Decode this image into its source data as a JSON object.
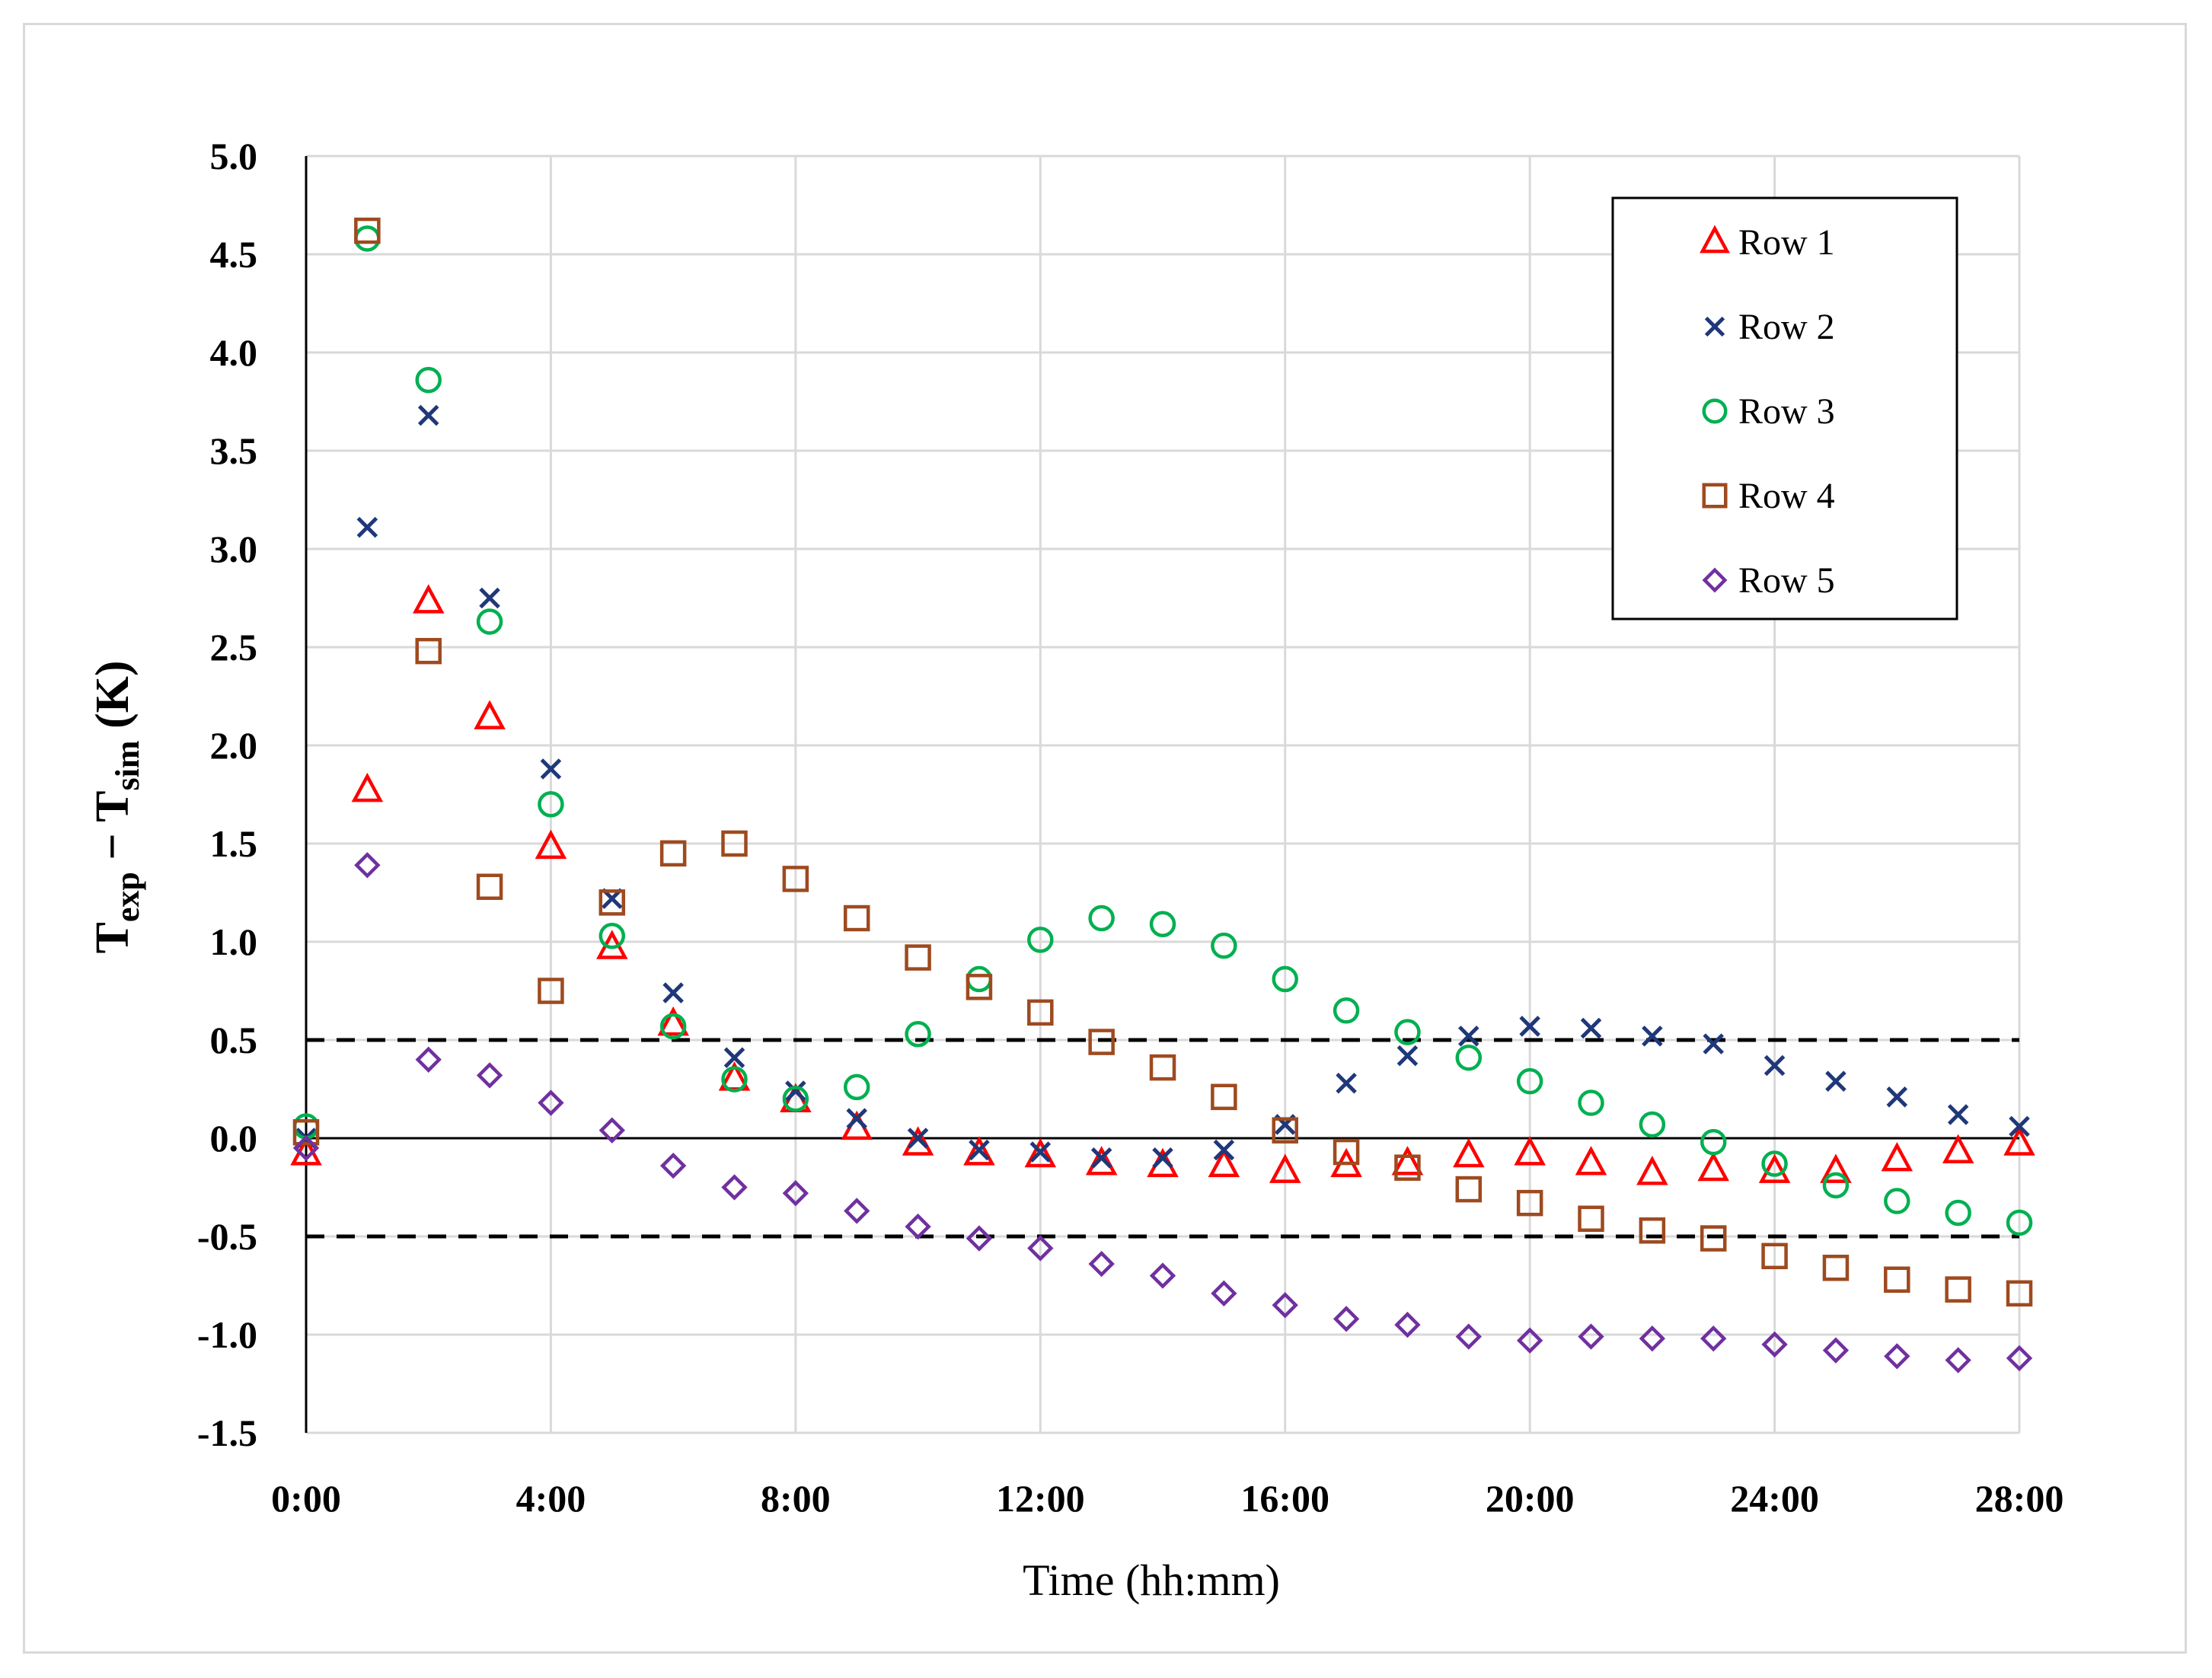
{
  "chart_data": {
    "type": "scatter",
    "title": "",
    "xlabel": "Time (hh:mm)",
    "ylabel": {
      "main": "T",
      "sub1": "exp",
      "minus": " − ",
      "main2": "T",
      "sub2": "sim",
      "unit": " (K)"
    },
    "xlim": [
      0,
      28
    ],
    "ylim": [
      -1.5,
      5.0
    ],
    "x_ticks": [
      0,
      4,
      8,
      12,
      16,
      20,
      24,
      28
    ],
    "x_tick_labels": [
      "0:00",
      "4:00",
      "8:00",
      "12:00",
      "16:00",
      "20:00",
      "24:00",
      "28:00"
    ],
    "y_ticks": [
      -1.5,
      -1.0,
      -0.5,
      0.0,
      0.5,
      1.0,
      1.5,
      2.0,
      2.5,
      3.0,
      3.5,
      4.0,
      4.5,
      5.0
    ],
    "y_tick_labels": [
      "-1.5",
      "-1.0",
      "-0.5",
      "0.0",
      "0.5",
      "1.0",
      "1.5",
      "2.0",
      "2.5",
      "3.0",
      "3.5",
      "4.0",
      "4.5",
      "5.0"
    ],
    "x_gridlines": [
      0,
      4,
      8,
      12,
      16,
      20,
      24,
      28
    ],
    "reference_lines": [
      0.5,
      -0.5
    ],
    "legend_position": "top-right",
    "x": [
      0,
      1,
      2,
      3,
      4,
      5,
      6,
      7,
      8,
      9,
      10,
      11,
      12,
      13,
      14,
      15,
      16,
      17,
      18,
      19,
      20,
      21,
      22,
      23,
      24,
      25,
      26,
      27,
      28
    ],
    "series": [
      {
        "name": "Row 1",
        "marker": "triangle",
        "color": "#ff0000",
        "values": [
          -0.08,
          1.77,
          2.73,
          2.14,
          1.48,
          0.97,
          0.58,
          0.3,
          0.19,
          0.05,
          -0.03,
          -0.08,
          -0.09,
          -0.13,
          -0.14,
          -0.14,
          -0.17,
          -0.14,
          -0.13,
          -0.09,
          -0.08,
          -0.13,
          -0.18,
          -0.16,
          -0.17,
          -0.17,
          -0.11,
          -0.07,
          -0.03
        ]
      },
      {
        "name": "Row 2",
        "marker": "x",
        "color": "#1f3879",
        "values": [
          0.0,
          3.11,
          3.68,
          2.75,
          1.88,
          1.22,
          0.74,
          0.41,
          0.24,
          0.1,
          0.0,
          -0.06,
          -0.07,
          -0.1,
          -0.1,
          -0.06,
          0.07,
          0.28,
          0.42,
          0.52,
          0.57,
          0.56,
          0.52,
          0.48,
          0.37,
          0.29,
          0.21,
          0.12,
          0.06
        ]
      },
      {
        "name": "Row 3",
        "marker": "circle",
        "color": "#00b050",
        "values": [
          0.06,
          4.58,
          3.86,
          2.63,
          1.7,
          1.03,
          0.57,
          0.3,
          0.2,
          0.26,
          0.53,
          0.81,
          1.01,
          1.12,
          1.09,
          0.98,
          0.81,
          0.65,
          0.54,
          0.41,
          0.29,
          0.18,
          0.07,
          -0.02,
          -0.13,
          -0.24,
          -0.32,
          -0.38,
          -0.43
        ]
      },
      {
        "name": "Row 4",
        "marker": "square",
        "color": "#9e4a1f",
        "values": [
          0.03,
          4.62,
          2.48,
          1.28,
          0.75,
          1.2,
          1.45,
          1.5,
          1.32,
          1.12,
          0.92,
          0.77,
          0.64,
          0.49,
          0.36,
          0.21,
          0.04,
          -0.07,
          -0.15,
          -0.26,
          -0.33,
          -0.41,
          -0.47,
          -0.51,
          -0.6,
          -0.66,
          -0.72,
          -0.77,
          -0.79
        ]
      },
      {
        "name": "Row 5",
        "marker": "diamond",
        "color": "#7030a0",
        "values": [
          -0.05,
          1.39,
          0.4,
          0.32,
          0.18,
          0.04,
          -0.14,
          -0.25,
          -0.28,
          -0.37,
          -0.45,
          -0.51,
          -0.56,
          -0.64,
          -0.7,
          -0.79,
          -0.85,
          -0.92,
          -0.95,
          -1.01,
          -1.03,
          -1.01,
          -1.02,
          -1.02,
          -1.05,
          -1.08,
          -1.11,
          -1.13,
          -1.12
        ]
      }
    ]
  }
}
